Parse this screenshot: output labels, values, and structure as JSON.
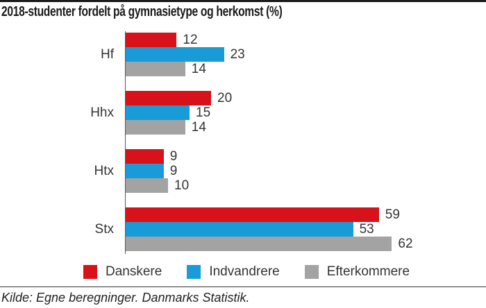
{
  "title": "2018-studenter fordelt på gymnasietype og herkomst (%)",
  "source": "Kilde: Egne beregninger. Danmarks Statistik.",
  "colors": {
    "danskere": "#d8121a",
    "indvandrere": "#189bd7",
    "efterkommere": "#a3a3a3",
    "axis": "#555555",
    "text": "#333333",
    "top_rule": "#1a1a1a"
  },
  "chart_data": {
    "type": "bar",
    "orientation": "horizontal",
    "title": "2018-studenter fordelt på gymnasietype og herkomst (%)",
    "categories": [
      "Hf",
      "Hhx",
      "Htx",
      "Stx"
    ],
    "series": [
      {
        "name": "Danskere",
        "color": "#d8121a",
        "values": [
          12,
          20,
          9,
          59
        ]
      },
      {
        "name": "Indvandrere",
        "color": "#189bd7",
        "values": [
          23,
          15,
          9,
          53
        ]
      },
      {
        "name": "Efterkommere",
        "color": "#a3a3a3",
        "values": [
          14,
          14,
          10,
          62
        ]
      }
    ],
    "value_labels": true,
    "grid": false,
    "legend_position": "bottom",
    "xlabel": "",
    "ylabel": ""
  },
  "legend": {
    "items": [
      {
        "label": "Danskere",
        "color": "#d8121a"
      },
      {
        "label": "Indvandrere",
        "color": "#189bd7"
      },
      {
        "label": "Efterkommere",
        "color": "#a3a3a3"
      }
    ]
  }
}
